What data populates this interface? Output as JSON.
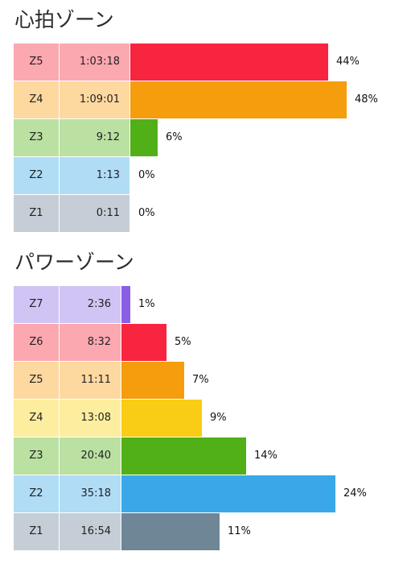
{
  "heart_rate_section": {
    "title": "心拍ゾーン"
  },
  "power_section": {
    "title": "パワーゾーン"
  },
  "chart_data": [
    {
      "type": "bar",
      "orientation": "horizontal",
      "title": "心拍ゾーン",
      "xlim": [
        0,
        100
      ],
      "categories": [
        "Z5",
        "Z4",
        "Z3",
        "Z2",
        "Z1"
      ],
      "times": [
        "1:03:18",
        "1:09:01",
        "9:12",
        "1:13",
        "0:11"
      ],
      "values": [
        44,
        48,
        6,
        0,
        0
      ],
      "value_labels": [
        "44%",
        "48%",
        "6%",
        "0%",
        "0%"
      ],
      "bar_colors": [
        "#f7253f",
        "#f59d0d",
        "#51b018",
        "#3aa8e8",
        "#6e8696"
      ],
      "cell_colors": [
        "#fca8b1",
        "#fdd89f",
        "#bae0a2",
        "#b0dcf6",
        "#c5ced6"
      ]
    },
    {
      "type": "bar",
      "orientation": "horizontal",
      "title": "パワーゾーン",
      "xlim": [
        0,
        100
      ],
      "categories": [
        "Z7",
        "Z6",
        "Z5",
        "Z4",
        "Z3",
        "Z2",
        "Z1"
      ],
      "times": [
        "2:36",
        "8:32",
        "11:11",
        "13:08",
        "20:40",
        "35:18",
        "16:54"
      ],
      "values": [
        1,
        5,
        7,
        9,
        14,
        24,
        11
      ],
      "value_labels": [
        "1%",
        "5%",
        "7%",
        "9%",
        "14%",
        "24%",
        "11%"
      ],
      "bar_colors": [
        "#8a5ee6",
        "#f7253f",
        "#f59d0d",
        "#f9cc16",
        "#51b018",
        "#3aa8e8",
        "#6e8696"
      ],
      "cell_colors": [
        "#d0c4f4",
        "#fca8b1",
        "#fdd89f",
        "#fdee9f",
        "#bae0a2",
        "#b0dcf6",
        "#c5ced6"
      ]
    }
  ]
}
